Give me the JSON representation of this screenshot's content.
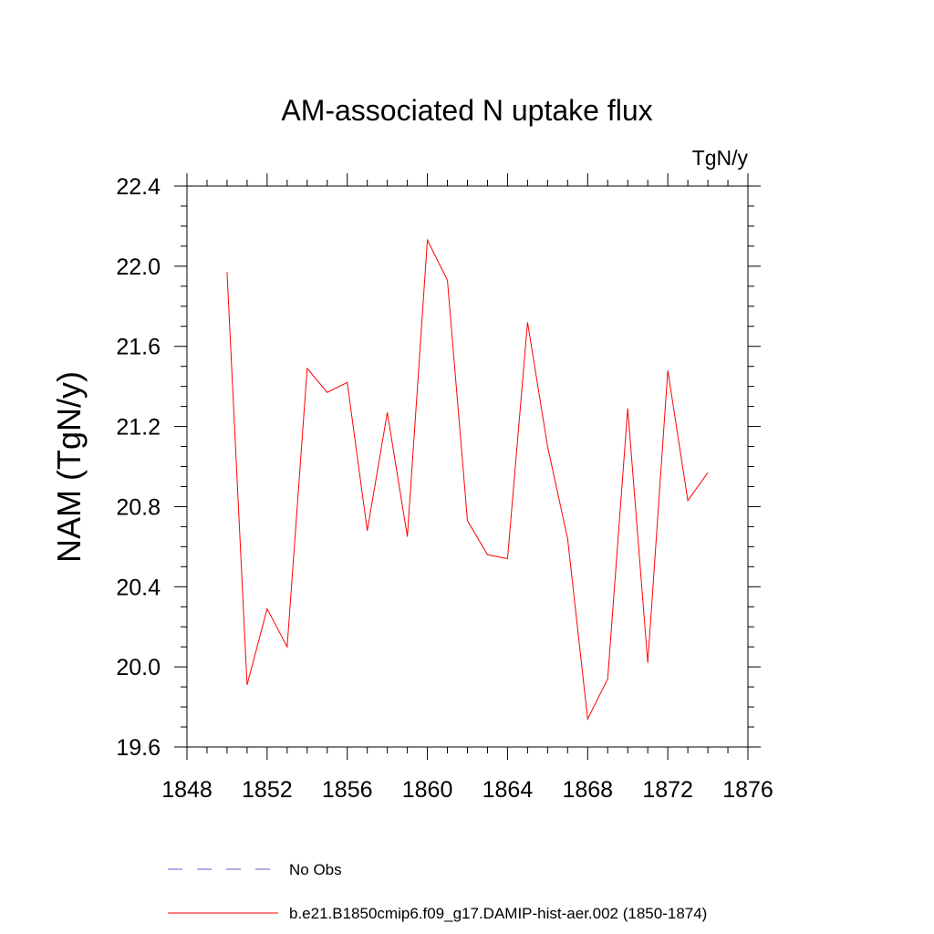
{
  "chart_data": {
    "type": "line",
    "title": "AM-associated N uptake flux",
    "units": "TgN/y",
    "xlabel": "",
    "ylabel": "NAM  (TgN/y)",
    "xlim": [
      1848,
      1876
    ],
    "ylim": [
      19.6,
      22.4
    ],
    "x_ticks": [
      1848,
      1852,
      1856,
      1860,
      1864,
      1868,
      1872,
      1876
    ],
    "x_tick_labels": [
      "1848",
      "1852",
      "1856",
      "1860",
      "1864",
      "1868",
      "1872",
      "1876"
    ],
    "y_ticks": [
      19.6,
      20.0,
      20.4,
      20.8,
      21.2,
      21.6,
      22.0,
      22.4
    ],
    "y_tick_labels": [
      "19.6",
      "20.0",
      "20.4",
      "20.8",
      "21.2",
      "21.6",
      "22.0",
      "22.4"
    ],
    "grid": false,
    "legend_position": "bottom",
    "series": [
      {
        "name": "b.e21.B1850cmip6.f09_g17.DAMIP-hist-aer.002 (1850-1874)",
        "color": "#ff0000",
        "style": "solid",
        "x": [
          1850,
          1851,
          1852,
          1853,
          1854,
          1855,
          1856,
          1857,
          1858,
          1859,
          1860,
          1861,
          1862,
          1863,
          1864,
          1865,
          1866,
          1867,
          1868,
          1869,
          1870,
          1871,
          1872,
          1873,
          1874
        ],
        "y": [
          21.97,
          19.91,
          20.29,
          20.1,
          21.49,
          21.37,
          21.42,
          20.68,
          21.27,
          20.65,
          22.13,
          21.93,
          20.73,
          20.56,
          20.54,
          21.72,
          21.1,
          20.64,
          19.74,
          19.94,
          21.29,
          20.02,
          21.48,
          20.83,
          20.97
        ]
      }
    ],
    "legend": [
      {
        "label": "No Obs",
        "color": "#6a5acd",
        "style": "dashed"
      },
      {
        "label": "b.e21.B1850cmip6.f09_g17.DAMIP-hist-aer.002 (1850-1874)",
        "color": "#ff0000",
        "style": "solid"
      }
    ]
  }
}
